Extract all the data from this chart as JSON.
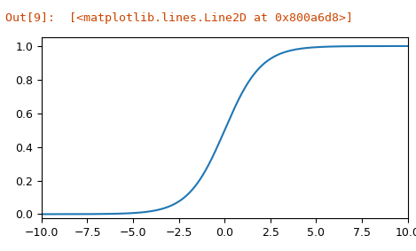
{
  "x_min": -10.0,
  "x_max": 10.0,
  "x_ticks": [
    -10.0,
    -7.5,
    -5.0,
    -2.5,
    0.0,
    2.5,
    5.0,
    7.5,
    10.0
  ],
  "y_ticks": [
    0.0,
    0.2,
    0.4,
    0.6,
    0.8,
    1.0
  ],
  "line_color": "#1f77b4",
  "line_width": 1.5,
  "background_color": "#ffffff",
  "header_out_text": "Out[9]:",
  "header_rest_text": "  [<matplotlib.lines.Line2D at 0x800a6d8>]",
  "header_color_out": "#cc4400",
  "header_color_rest": "#cc4400",
  "fig_width": 4.69,
  "fig_height": 2.83,
  "dpi": 100,
  "header_fontsize": 9.5,
  "tick_fontsize": 9
}
